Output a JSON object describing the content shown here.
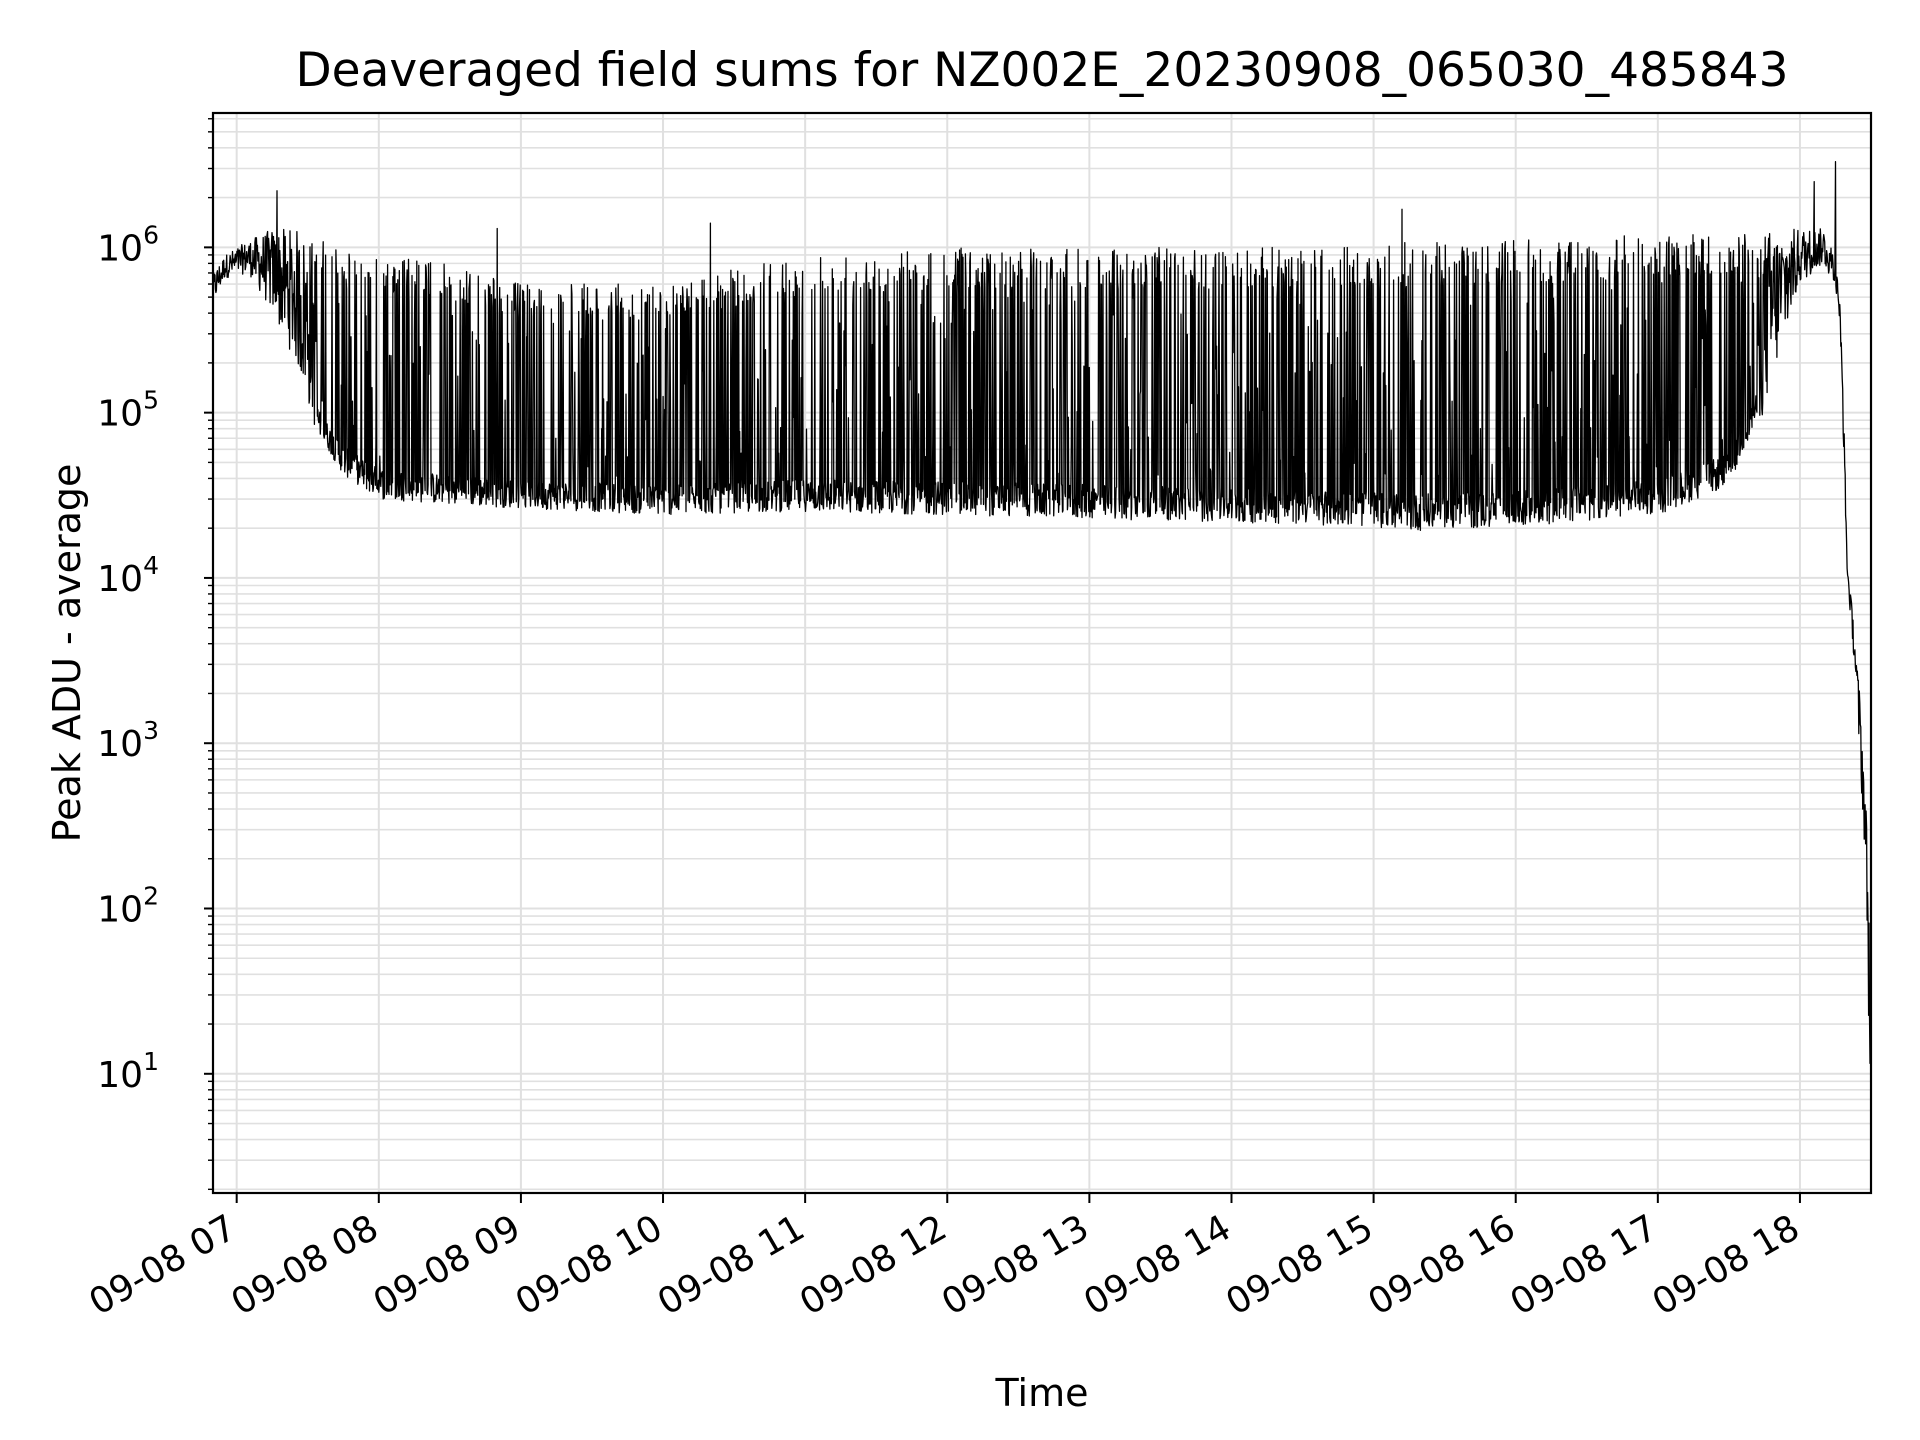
{
  "chart_data": {
    "type": "line",
    "title": "Deaveraged field sums for NZ002E_20230908_065030_485843",
    "xlabel": "Time",
    "ylabel": "Peak ADU - average",
    "y_scale": "log",
    "ylim": [
      1.9,
      6500000
    ],
    "xlim": [
      "2023-09-08 06:50",
      "2023-09-08 18:30"
    ],
    "grid": true,
    "grid_color": "#e0e0e0",
    "line_color": "#000000",
    "x_ticks": [
      {
        "value": "2023-09-08 07:00",
        "label": "09-08 07"
      },
      {
        "value": "2023-09-08 08:00",
        "label": "09-08 08"
      },
      {
        "value": "2023-09-08 09:00",
        "label": "09-08 09"
      },
      {
        "value": "2023-09-08 10:00",
        "label": "09-08 10"
      },
      {
        "value": "2023-09-08 11:00",
        "label": "09-08 11"
      },
      {
        "value": "2023-09-08 12:00",
        "label": "09-08 12"
      },
      {
        "value": "2023-09-08 13:00",
        "label": "09-08 13"
      },
      {
        "value": "2023-09-08 14:00",
        "label": "09-08 14"
      },
      {
        "value": "2023-09-08 15:00",
        "label": "09-08 15"
      },
      {
        "value": "2023-09-08 16:00",
        "label": "09-08 16"
      },
      {
        "value": "2023-09-08 17:00",
        "label": "09-08 17"
      },
      {
        "value": "2023-09-08 18:00",
        "label": "09-08 18"
      }
    ],
    "y_ticks": [
      {
        "value": 10,
        "base": "10",
        "exp": "1"
      },
      {
        "value": 100,
        "base": "10",
        "exp": "2"
      },
      {
        "value": 1000,
        "base": "10",
        "exp": "3"
      },
      {
        "value": 10000,
        "base": "10",
        "exp": "4"
      },
      {
        "value": 100000,
        "base": "10",
        "exp": "5"
      },
      {
        "value": 1000000,
        "base": "10",
        "exp": "6"
      }
    ],
    "series": [
      {
        "envelope": [
          {
            "t": "2023-09-08 06:50",
            "low": 450000,
            "high": 700000
          },
          {
            "t": "2023-09-08 06:55",
            "low": 650000,
            "high": 900000
          },
          {
            "t": "2023-09-08 07:05",
            "low": 700000,
            "high": 1100000
          },
          {
            "t": "2023-09-08 07:15",
            "low": 400000,
            "high": 1300000
          },
          {
            "t": "2023-09-08 07:25",
            "low": 200000,
            "high": 1300000
          },
          {
            "t": "2023-09-08 07:35",
            "low": 60000,
            "high": 1100000
          },
          {
            "t": "2023-09-08 07:45",
            "low": 35000,
            "high": 1000000
          },
          {
            "t": "2023-09-08 08:00",
            "low": 25000,
            "high": 900000
          },
          {
            "t": "2023-09-08 08:30",
            "low": 23000,
            "high": 800000
          },
          {
            "t": "2023-09-08 09:00",
            "low": 22000,
            "high": 600000
          },
          {
            "t": "2023-09-08 10:00",
            "low": 20000,
            "high": 600000
          },
          {
            "t": "2023-09-08 11:00",
            "low": 21000,
            "high": 900000
          },
          {
            "t": "2023-09-08 12:00",
            "low": 20000,
            "high": 1000000
          },
          {
            "t": "2023-09-08 13:00",
            "low": 19000,
            "high": 1000000
          },
          {
            "t": "2023-09-08 14:00",
            "low": 18000,
            "high": 1000000
          },
          {
            "t": "2023-09-08 15:00",
            "low": 17000,
            "high": 1000000
          },
          {
            "t": "2023-09-08 15:15",
            "low": 16000,
            "high": 1100000
          },
          {
            "t": "2023-09-08 16:00",
            "low": 17000,
            "high": 1100000
          },
          {
            "t": "2023-09-08 17:00",
            "low": 20000,
            "high": 1200000
          },
          {
            "t": "2023-09-08 17:30",
            "low": 30000,
            "high": 1200000
          },
          {
            "t": "2023-09-08 17:45",
            "low": 100000,
            "high": 1300000
          },
          {
            "t": "2023-09-08 18:00",
            "low": 600000,
            "high": 1300000
          },
          {
            "t": "2023-09-08 18:10",
            "low": 800000,
            "high": 1300000
          },
          {
            "t": "2023-09-08 18:16",
            "low": 500000,
            "high": 900000
          },
          {
            "t": "2023-09-08 18:18",
            "low": 100000,
            "high": 200000
          },
          {
            "t": "2023-09-08 18:20",
            "low": 10000,
            "high": 12000
          },
          {
            "t": "2023-09-08 18:23",
            "low": 3000,
            "high": 5000
          },
          {
            "t": "2023-09-08 18:26",
            "low": 500,
            "high": 1500
          },
          {
            "t": "2023-09-08 18:28",
            "low": 150,
            "high": 400
          },
          {
            "t": "2023-09-08 18:30",
            "low": 3,
            "high": 50
          }
        ],
        "notable_peaks": [
          {
            "t": "2023-09-08 07:17",
            "value": 2200000
          },
          {
            "t": "2023-09-08 08:50",
            "value": 1300000
          },
          {
            "t": "2023-09-08 10:20",
            "value": 1400000
          },
          {
            "t": "2023-09-08 15:12",
            "value": 1700000
          },
          {
            "t": "2023-09-08 18:06",
            "value": 2500000
          },
          {
            "t": "2023-09-08 18:15",
            "value": 3300000
          }
        ]
      }
    ]
  }
}
